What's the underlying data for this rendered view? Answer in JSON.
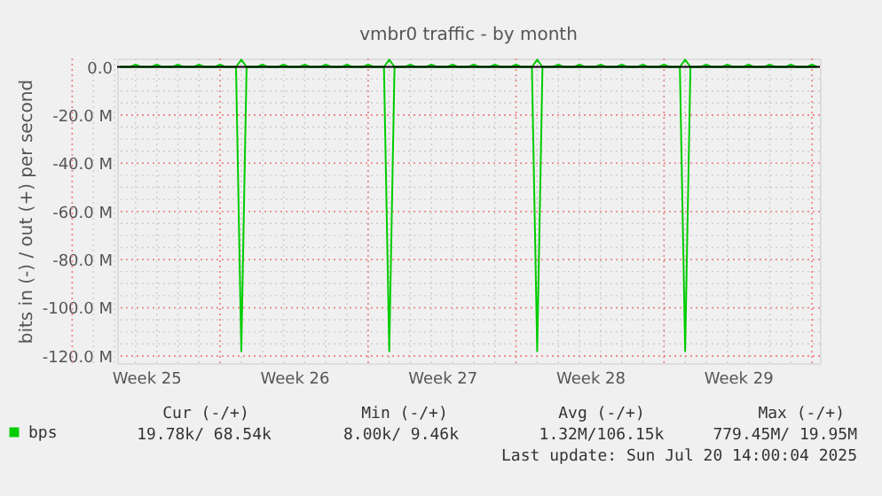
{
  "chart_data": {
    "type": "line",
    "title": "vmbr0 traffic - by month",
    "ylabel": "bits in (-) / out (+) per second",
    "categories": [
      null,
      null,
      null,
      null,
      null,
      "Week 25",
      null,
      null,
      null,
      null,
      null,
      null,
      null,
      null,
      null,
      null,
      null,
      null,
      null,
      null,
      null,
      null,
      null,
      null,
      null,
      null,
      null,
      null,
      null,
      null,
      null,
      null,
      null,
      "Week 26",
      null,
      null,
      null,
      null,
      null,
      null,
      null,
      null,
      null,
      null,
      null,
      null,
      null,
      null,
      null,
      null,
      null,
      null,
      null,
      null,
      null,
      null,
      null,
      null,
      null,
      null,
      null,
      "Week 27",
      null,
      null,
      null,
      null,
      null,
      null,
      null,
      null,
      null,
      null,
      null,
      null,
      null,
      null,
      null,
      null,
      null,
      null,
      null,
      null,
      null,
      null,
      null,
      null,
      null,
      null,
      null,
      "Week 28",
      null,
      null,
      null,
      null,
      null,
      null,
      null,
      null,
      null,
      null,
      null,
      null,
      null,
      null,
      null,
      null,
      null,
      null,
      null,
      null,
      null,
      null,
      null,
      null,
      null,
      null,
      null,
      "Week 29",
      null,
      null,
      null,
      null,
      null,
      null,
      null,
      null,
      null,
      null,
      null,
      null,
      null,
      null,
      null
    ],
    "ylim": [
      -123,
      3.5
    ],
    "yticks": [
      {
        "value": 0,
        "label": "0.0"
      },
      {
        "value": -20,
        "label": "-20.0 M"
      },
      {
        "value": -40,
        "label": "-40.0 M"
      },
      {
        "value": -60,
        "label": "-60.0 M"
      },
      {
        "value": -80,
        "label": "-80.0 M"
      },
      {
        "value": -100,
        "label": "-100.0 M"
      },
      {
        "value": -120,
        "label": "-120.0 M"
      }
    ],
    "grid": true,
    "legend": "bottom left",
    "line_style": "solid",
    "marker": "none",
    "ref_lines": [
      {
        "axis": "y",
        "value": 0,
        "label": null,
        "color": "#000000"
      }
    ],
    "series": [
      {
        "name": "bps",
        "color": "#00cc00",
        "values": [
          0,
          0,
          0,
          1,
          0,
          0,
          0,
          1,
          0,
          0,
          0,
          1,
          0,
          0,
          0,
          1,
          0,
          0,
          0,
          1,
          0,
          0,
          0,
          3,
          0,
          0,
          0,
          1,
          0,
          0,
          0,
          1,
          0,
          0,
          0,
          1,
          0,
          0,
          0,
          1,
          0,
          0,
          0,
          1,
          0,
          0,
          0,
          1,
          0,
          0,
          0,
          3,
          0,
          0,
          0,
          1,
          0,
          0,
          0,
          1,
          0,
          0,
          0,
          1,
          0,
          0,
          0,
          1,
          0,
          0,
          0,
          1,
          0,
          0,
          0,
          1,
          0,
          0,
          0,
          3,
          0,
          0,
          0,
          1,
          0,
          0,
          0,
          1,
          0,
          0,
          0,
          1,
          0,
          0,
          0,
          1,
          0,
          0,
          0,
          1,
          0,
          0,
          0,
          1,
          0,
          0,
          0,
          3,
          0,
          0,
          0,
          1,
          0,
          0,
          0,
          1,
          0,
          0,
          0,
          1,
          0,
          0,
          0,
          1,
          0,
          0,
          0,
          1,
          0,
          0,
          0,
          1,
          0
        ]
      },
      {
        "color": "#00cc00",
        "values": [
          0,
          0,
          0,
          0,
          0,
          0,
          0,
          0,
          0,
          0,
          0,
          0,
          0,
          0,
          0,
          0,
          0,
          0,
          0,
          0,
          0,
          0,
          0,
          -118,
          0,
          0,
          0,
          0,
          0,
          0,
          0,
          0,
          0,
          0,
          0,
          0,
          0,
          0,
          0,
          0,
          0,
          0,
          0,
          0,
          0,
          0,
          0,
          0,
          0,
          0,
          0,
          -118,
          0,
          0,
          0,
          0,
          0,
          0,
          0,
          0,
          0,
          0,
          0,
          0,
          0,
          0,
          0,
          0,
          0,
          0,
          0,
          0,
          0,
          0,
          0,
          0,
          0,
          0,
          0,
          -118,
          0,
          0,
          0,
          0,
          0,
          0,
          0,
          0,
          0,
          0,
          0,
          0,
          0,
          0,
          0,
          0,
          0,
          0,
          0,
          0,
          0,
          0,
          0,
          0,
          0,
          0,
          0,
          -118,
          0,
          0,
          0,
          0,
          0,
          0,
          0,
          0,
          0,
          0,
          0,
          0,
          0,
          0,
          0,
          0,
          0,
          0,
          0,
          0,
          0,
          0,
          0,
          0,
          0
        ]
      }
    ],
    "annotations": [
      "Cur (-/+)",
      "Min (-/+)",
      "Avg (-/+)",
      "Max (-/+)",
      "19.78k/ 68.54k",
      "8.00k/   9.46k",
      "1.32M/106.15k",
      "779.45M/ 19.95M",
      "Last update: Sun Jul 20 14:00:04 2025"
    ]
  }
}
